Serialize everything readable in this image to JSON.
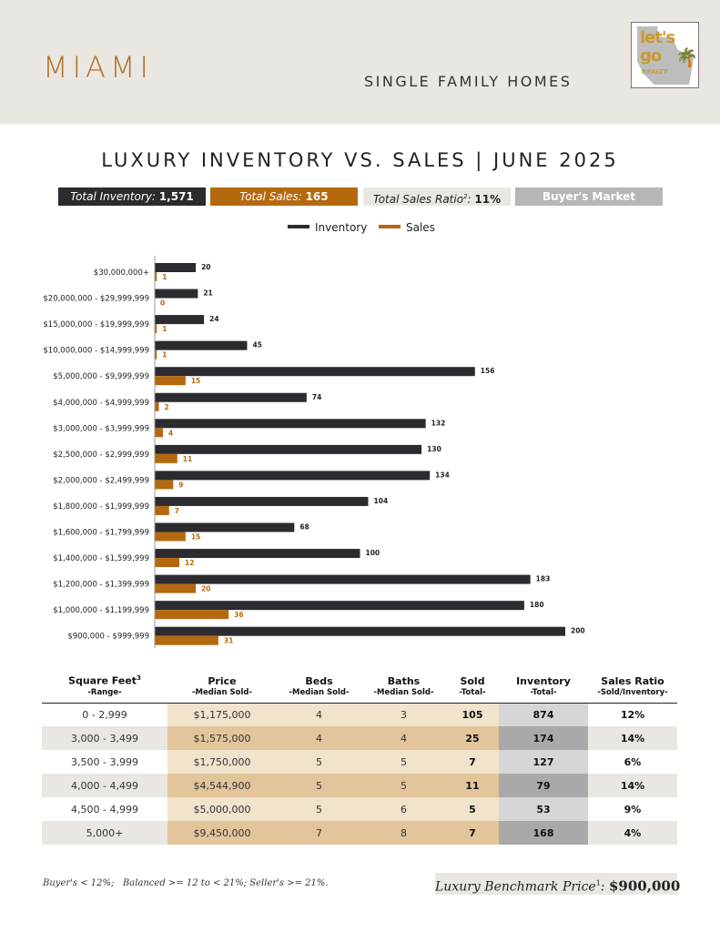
{
  "header": {
    "city": "MIAMI",
    "subtitle": "SINGLE FAMILY HOMES",
    "logo": {
      "line1": "let's",
      "line2": "go",
      "line3": "REALTY"
    }
  },
  "title": "LUXURY INVENTORY VS. SALES | JUNE 2025",
  "summary": {
    "inventory_label": "Total Inventory:",
    "inventory_value": "1,571",
    "sales_label": "Total Sales:",
    "sales_value": "165",
    "ratio_label": "Total Sales Ratio",
    "ratio_sup": "2",
    "ratio_value": "11%",
    "market": "Buyer's Market"
  },
  "colors": {
    "inventory": "#2c2b30",
    "sales": "#b5690f",
    "accent": "#b5712a"
  },
  "chart_data": {
    "type": "bar",
    "orientation": "horizontal",
    "legend_position": "top-center",
    "grid": false,
    "categories": [
      "$30,000,000+",
      "$20,000,000 - $29,999,999",
      "$15,000,000 - $19,999,999",
      "$10,000,000 - $14,999,999",
      "$5,000,000 - $9,999,999",
      "$4,000,000 - $4,999,999",
      "$3,000,000 - $3,999,999",
      "$2,500,000 - $2,999,999",
      "$2,000,000 - $2,499,999",
      "$1,800,000 - $1,999,999",
      "$1,600,000 - $1,799,999",
      "$1,400,000 - $1,599,999",
      "$1,200,000 - $1,399,999",
      "$1,000,000 - $1,199,999",
      "$900,000 - $999,999"
    ],
    "series": [
      {
        "name": "Inventory",
        "color": "#2c2b30",
        "values": [
          20,
          21,
          24,
          45,
          156,
          74,
          132,
          130,
          134,
          104,
          68,
          100,
          183,
          180,
          200
        ]
      },
      {
        "name": "Sales",
        "color": "#b5690f",
        "values": [
          1,
          0,
          1,
          1,
          15,
          2,
          4,
          11,
          9,
          7,
          15,
          12,
          20,
          36,
          31
        ]
      }
    ],
    "xlim": [
      0,
      200
    ]
  },
  "table": {
    "headers": [
      {
        "label": "Square Feet",
        "sup": "3",
        "sub": "-Range-"
      },
      {
        "label": "Price",
        "sup": "",
        "sub": "-Median Sold-"
      },
      {
        "label": "Beds",
        "sup": "",
        "sub": "-Median Sold-"
      },
      {
        "label": "Baths",
        "sup": "",
        "sub": "-Median Sold-"
      },
      {
        "label": "Sold",
        "sup": "",
        "sub": "-Total-"
      },
      {
        "label": "Inventory",
        "sup": "",
        "sub": "-Total-"
      },
      {
        "label": "Sales Ratio",
        "sup": "",
        "sub": "-Sold/Inventory-"
      }
    ],
    "rows": [
      [
        "0 - 2,999",
        "$1,175,000",
        "4",
        "3",
        "105",
        "874",
        "12%"
      ],
      [
        "3,000 - 3,499",
        "$1,575,000",
        "4",
        "4",
        "25",
        "174",
        "14%"
      ],
      [
        "3,500 - 3,999",
        "$1,750,000",
        "5",
        "5",
        "7",
        "127",
        "6%"
      ],
      [
        "4,000 - 4,499",
        "$4,544,900",
        "5",
        "5",
        "11",
        "79",
        "14%"
      ],
      [
        "4,500 - 4,999",
        "$5,000,000",
        "5",
        "6",
        "5",
        "53",
        "9%"
      ],
      [
        "5,000+",
        "$9,450,000",
        "7",
        "8",
        "7",
        "168",
        "4%"
      ]
    ]
  },
  "footnote": "Buyer's < 12%;   Balanced >= 12 to < 21%; Seller's >= 21%.",
  "benchmark": {
    "label": "Luxury Benchmark Price",
    "sup": "1",
    "value": "$900,000"
  }
}
